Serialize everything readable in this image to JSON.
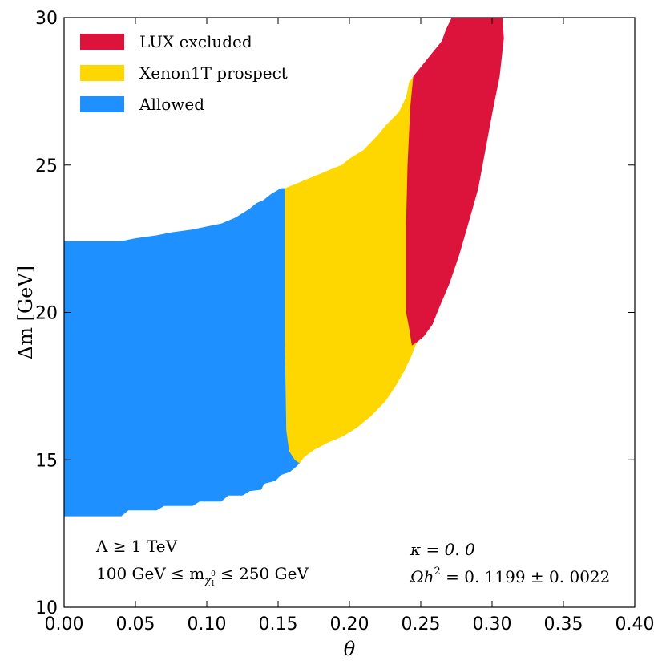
{
  "chart_data": {
    "type": "area",
    "xlabel": "θ",
    "ylabel": "Δm [GeV]",
    "xlim": [
      0.0,
      0.4
    ],
    "ylim": [
      10,
      30
    ],
    "x_ticks": [
      "0.00",
      "0.05",
      "0.10",
      "0.15",
      "0.20",
      "0.25",
      "0.30",
      "0.35",
      "0.40"
    ],
    "y_ticks": [
      "10",
      "15",
      "20",
      "25",
      "30"
    ],
    "grid": false,
    "legend_position": "top-left",
    "series": [
      {
        "name": "Allowed",
        "color": "#1E90FF",
        "polygon": [
          [
            0.0,
            13.1
          ],
          [
            0.04,
            13.1
          ],
          [
            0.045,
            13.3
          ],
          [
            0.065,
            13.3
          ],
          [
            0.07,
            13.45
          ],
          [
            0.09,
            13.45
          ],
          [
            0.095,
            13.6
          ],
          [
            0.11,
            13.6
          ],
          [
            0.115,
            13.8
          ],
          [
            0.125,
            13.8
          ],
          [
            0.13,
            13.95
          ],
          [
            0.138,
            14.0
          ],
          [
            0.14,
            14.2
          ],
          [
            0.148,
            14.3
          ],
          [
            0.152,
            14.5
          ],
          [
            0.158,
            14.6
          ],
          [
            0.163,
            14.8
          ],
          [
            0.165,
            14.9
          ],
          [
            0.162,
            15.0
          ],
          [
            0.158,
            15.3
          ],
          [
            0.156,
            16.0
          ],
          [
            0.155,
            19.0
          ],
          [
            0.155,
            21.8
          ],
          [
            0.155,
            24.2
          ],
          [
            0.152,
            24.2
          ],
          [
            0.145,
            24.0
          ],
          [
            0.14,
            23.8
          ],
          [
            0.135,
            23.7
          ],
          [
            0.13,
            23.5
          ],
          [
            0.125,
            23.35
          ],
          [
            0.12,
            23.2
          ],
          [
            0.11,
            23.0
          ],
          [
            0.1,
            22.9
          ],
          [
            0.09,
            22.8
          ],
          [
            0.075,
            22.7
          ],
          [
            0.065,
            22.6
          ],
          [
            0.05,
            22.5
          ],
          [
            0.04,
            22.4
          ],
          [
            0.0,
            22.4
          ]
        ]
      },
      {
        "name": "Xenon1T prospect",
        "color": "#FFD700",
        "polygon": [
          [
            0.155,
            24.2
          ],
          [
            0.165,
            24.4
          ],
          [
            0.175,
            24.6
          ],
          [
            0.185,
            24.8
          ],
          [
            0.195,
            25.0
          ],
          [
            0.2,
            25.2
          ],
          [
            0.21,
            25.5
          ],
          [
            0.22,
            26.0
          ],
          [
            0.225,
            26.3
          ],
          [
            0.235,
            26.8
          ],
          [
            0.24,
            27.3
          ],
          [
            0.242,
            27.8
          ],
          [
            0.245,
            28.0
          ],
          [
            0.243,
            27.0
          ],
          [
            0.241,
            25.0
          ],
          [
            0.24,
            23.0
          ],
          [
            0.24,
            21.0
          ],
          [
            0.24,
            20.0
          ],
          [
            0.242,
            19.5
          ],
          [
            0.244,
            18.9
          ],
          [
            0.247,
            19.0
          ],
          [
            0.243,
            18.5
          ],
          [
            0.238,
            18.0
          ],
          [
            0.232,
            17.5
          ],
          [
            0.225,
            17.0
          ],
          [
            0.215,
            16.5
          ],
          [
            0.205,
            16.1
          ],
          [
            0.195,
            15.8
          ],
          [
            0.185,
            15.6
          ],
          [
            0.175,
            15.35
          ],
          [
            0.168,
            15.1
          ],
          [
            0.165,
            14.9
          ],
          [
            0.162,
            15.0
          ],
          [
            0.158,
            15.3
          ],
          [
            0.156,
            16.0
          ],
          [
            0.155,
            19.0
          ],
          [
            0.155,
            21.8
          ]
        ]
      },
      {
        "name": "LUX excluded",
        "color": "#DC143C",
        "polygon": [
          [
            0.245,
            28.0
          ],
          [
            0.25,
            28.3
          ],
          [
            0.255,
            28.6
          ],
          [
            0.26,
            28.9
          ],
          [
            0.265,
            29.2
          ],
          [
            0.268,
            29.6
          ],
          [
            0.272,
            30.0
          ],
          [
            0.3,
            30.0
          ],
          [
            0.307,
            30.0
          ],
          [
            0.308,
            29.3
          ],
          [
            0.305,
            28.0
          ],
          [
            0.3,
            26.8
          ],
          [
            0.295,
            25.5
          ],
          [
            0.29,
            24.2
          ],
          [
            0.283,
            23.0
          ],
          [
            0.277,
            22.0
          ],
          [
            0.27,
            21.0
          ],
          [
            0.263,
            20.2
          ],
          [
            0.258,
            19.6
          ],
          [
            0.252,
            19.2
          ],
          [
            0.247,
            19.0
          ],
          [
            0.244,
            18.9
          ],
          [
            0.242,
            19.5
          ],
          [
            0.24,
            20.0
          ],
          [
            0.24,
            21.0
          ],
          [
            0.24,
            23.0
          ],
          [
            0.241,
            25.0
          ],
          [
            0.243,
            27.0
          ]
        ]
      }
    ],
    "legend_order": [
      "LUX excluded",
      "Xenon1T prospect",
      "Allowed"
    ],
    "annotations": {
      "left_line1": "Λ ≥ 1 TeV",
      "left_line2": "100 GeV ≤ m",
      "left_line2_sub": "χ",
      "left_line2_sup": "0",
      "left_line2_subsub": "1",
      "left_line2_tail": " ≤ 250 GeV",
      "right_line1": "κ = 0. 0",
      "right_line2": "Ωh",
      "right_line2_sup": "2",
      "right_line2_tail": " = 0. 1199 ± 0. 0022"
    }
  }
}
